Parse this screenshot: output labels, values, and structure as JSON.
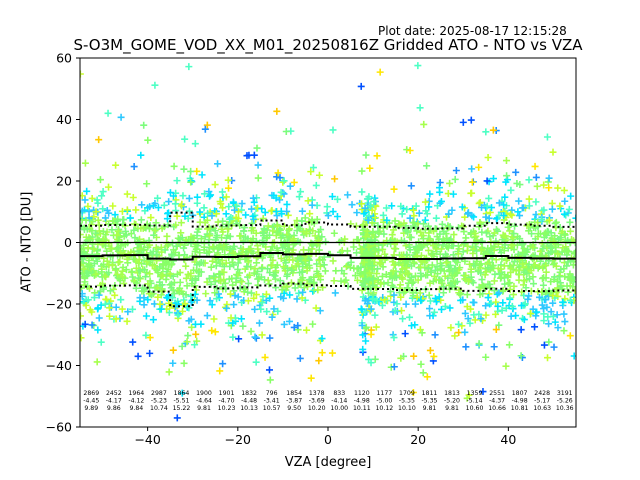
{
  "header": {
    "plot_date": "Plot date: 2025-08-17 12:15:28",
    "title": "S-O3M_GOME_VOD_XX_M01_20250816Z Gridded ATO - NTO vs VZA"
  },
  "chart_data": {
    "type": "scatter",
    "title": "S-O3M_GOME_VOD_XX_M01_20250816Z Gridded ATO - NTO vs VZA",
    "xlabel": "VZA [degree]",
    "ylabel": "ATO - NTO [DU]",
    "xlim": [
      -55,
      55
    ],
    "ylim": [
      -60,
      60
    ],
    "xticks": [
      -40,
      -20,
      0,
      20,
      40
    ],
    "yticks": [
      -60,
      -40,
      -20,
      0,
      20,
      40,
      60
    ],
    "marker": "plus",
    "zero_line": 0,
    "bins": [
      {
        "x": -52.5,
        "count": "2869",
        "mean": "-4.45",
        "std": "9.89"
      },
      {
        "x": -47.5,
        "count": "2452",
        "mean": "-4.17",
        "std": "9.86"
      },
      {
        "x": -42.5,
        "count": "1964",
        "mean": "-4.12",
        "std": "9.84"
      },
      {
        "x": -37.5,
        "count": "2987",
        "mean": "-5.23",
        "std": "10.74"
      },
      {
        "x": -32.5,
        "count": "1864",
        "mean": "-5.51",
        "std": "15.22"
      },
      {
        "x": -27.5,
        "count": "1900",
        "mean": "-4.64",
        "std": "9.81"
      },
      {
        "x": -22.5,
        "count": "1901",
        "mean": "-4.70",
        "std": "10.23"
      },
      {
        "x": -17.5,
        "count": "1832",
        "mean": "-4.48",
        "std": "10.13"
      },
      {
        "x": -12.5,
        "count": "796",
        "mean": "-3.41",
        "std": "10.57"
      },
      {
        "x": -7.5,
        "count": "1854",
        "mean": "-3.87",
        "std": "9.50"
      },
      {
        "x": -2.5,
        "count": "1378",
        "mean": "-3.69",
        "std": "10.20"
      },
      {
        "x": 2.5,
        "count": "833",
        "mean": "-4.14",
        "std": "10.00"
      },
      {
        "x": 7.5,
        "count": "1120",
        "mean": "-4.98",
        "std": "10.11"
      },
      {
        "x": 12.5,
        "count": "1177",
        "mean": "-5.00",
        "std": "10.12"
      },
      {
        "x": 17.5,
        "count": "1709",
        "mean": "-5.35",
        "std": "10.10"
      },
      {
        "x": 22.5,
        "count": "1811",
        "mean": "-5.35",
        "std": "9.81"
      },
      {
        "x": 27.5,
        "count": "1813",
        "mean": "-5.20",
        "std": "9.81"
      },
      {
        "x": 32.5,
        "count": "1359",
        "mean": "-5.14",
        "std": "10.60"
      },
      {
        "x": 37.5,
        "count": "2551",
        "mean": "-4.37",
        "std": "10.66"
      },
      {
        "x": 42.5,
        "count": "1807",
        "mean": "-4.98",
        "std": "10.81"
      },
      {
        "x": 47.5,
        "count": "2428",
        "mean": "-5.17",
        "std": "10.63"
      },
      {
        "x": 52.5,
        "count": "3191",
        "mean": "-5.26",
        "std": "10.36"
      }
    ],
    "colors": {
      "scatter": [
        "#7cfc7c",
        "#88ff66",
        "#a6ff4d",
        "#2ec8ff",
        "#00e5ff",
        "#4dffc4",
        "#c8ff2e",
        "#ffe600",
        "#ffc800",
        "#0050ff",
        "#1e90ff"
      ],
      "mean_line": "#000000",
      "std_line": "#000000"
    }
  }
}
